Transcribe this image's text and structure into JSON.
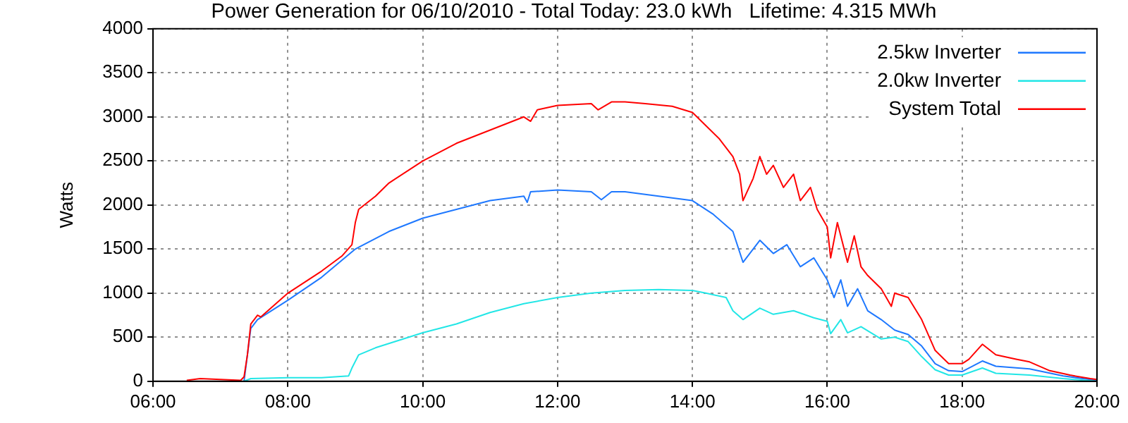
{
  "chart_data": {
    "type": "line",
    "title": "Power Generation for 06/10/2010 - Total Today: 23.0 kWh   Lifetime: 4.315 MWh",
    "ylabel": "Watts",
    "xlim": [
      6,
      20
    ],
    "xticks": [
      {
        "value": 6,
        "label": "06:00"
      },
      {
        "value": 8,
        "label": "08:00"
      },
      {
        "value": 10,
        "label": "10:00"
      },
      {
        "value": 12,
        "label": "12:00"
      },
      {
        "value": 14,
        "label": "14:00"
      },
      {
        "value": 16,
        "label": "16:00"
      },
      {
        "value": 18,
        "label": "18:00"
      },
      {
        "value": 20,
        "label": "20:00"
      }
    ],
    "ylim": [
      0,
      4000
    ],
    "yticks": [
      0,
      500,
      1000,
      1500,
      2000,
      2500,
      3000,
      3500,
      4000
    ],
    "grid": true,
    "legend": "top right",
    "marker": "none",
    "line_style": "solid",
    "series": [
      {
        "name": "2.5kw Inverter",
        "color": "#1e78ff",
        "x": [
          7.35,
          7.45,
          7.55,
          8,
          8.5,
          9,
          9.5,
          10,
          10.5,
          11,
          11.5,
          11.55,
          11.6,
          12,
          12.5,
          12.65,
          12.8,
          13,
          13.5,
          14,
          14.3,
          14.6,
          14.75,
          15,
          15.2,
          15.4,
          15.6,
          15.8,
          16,
          16.1,
          16.2,
          16.3,
          16.45,
          16.6,
          16.8,
          17,
          17.2,
          17.4,
          17.6,
          17.8,
          18,
          18.3,
          18.5,
          19,
          19.5,
          20
        ],
        "values": [
          0,
          600,
          700,
          920,
          1180,
          1500,
          1700,
          1850,
          1950,
          2050,
          2100,
          2030,
          2150,
          2170,
          2150,
          2060,
          2150,
          2150,
          2100,
          2050,
          1900,
          1700,
          1350,
          1600,
          1450,
          1550,
          1300,
          1400,
          1150,
          950,
          1150,
          850,
          1050,
          800,
          700,
          580,
          530,
          400,
          200,
          120,
          110,
          230,
          170,
          140,
          60,
          10
        ]
      },
      {
        "name": "2.0kw Inverter",
        "color": "#22e6e6",
        "x": [
          7.35,
          7.45,
          8,
          8.5,
          8.9,
          8.95,
          9.05,
          9.3,
          10,
          10.5,
          11,
          11.5,
          12,
          12.5,
          13,
          13.5,
          14,
          14.2,
          14.5,
          14.6,
          14.75,
          15,
          15.2,
          15.5,
          15.8,
          16,
          16.05,
          16.2,
          16.3,
          16.5,
          16.8,
          17,
          17.2,
          17.4,
          17.6,
          17.8,
          18,
          18.3,
          18.5,
          19,
          19.5,
          20
        ],
        "values": [
          0,
          30,
          40,
          40,
          60,
          150,
          300,
          380,
          550,
          650,
          780,
          880,
          950,
          1000,
          1030,
          1040,
          1030,
          1000,
          950,
          800,
          700,
          830,
          760,
          800,
          720,
          680,
          540,
          700,
          550,
          620,
          480,
          500,
          450,
          280,
          130,
          70,
          70,
          150,
          90,
          70,
          30,
          0
        ]
      },
      {
        "name": "System Total",
        "color": "#ff0000",
        "x": [
          6.5,
          6.7,
          7,
          7.3,
          7.35,
          7.4,
          7.45,
          7.55,
          7.6,
          8,
          8.5,
          8.8,
          8.95,
          9,
          9.05,
          9.3,
          9.5,
          10,
          10.5,
          11,
          11.5,
          11.6,
          11.7,
          12,
          12.5,
          12.6,
          12.8,
          13,
          13.3,
          13.7,
          14,
          14.2,
          14.4,
          14.6,
          14.7,
          14.75,
          14.9,
          15,
          15.1,
          15.2,
          15.35,
          15.5,
          15.6,
          15.75,
          15.85,
          16,
          16.05,
          16.15,
          16.3,
          16.4,
          16.5,
          16.6,
          16.8,
          16.95,
          17,
          17.2,
          17.4,
          17.6,
          17.8,
          18,
          18.1,
          18.3,
          18.5,
          18.8,
          19,
          19.3,
          19.6,
          19.9,
          20
        ],
        "values": [
          10,
          30,
          20,
          10,
          50,
          300,
          650,
          750,
          730,
          1000,
          1250,
          1420,
          1550,
          1800,
          1950,
          2100,
          2250,
          2500,
          2700,
          2850,
          3000,
          2950,
          3080,
          3130,
          3150,
          3080,
          3170,
          3170,
          3150,
          3120,
          3050,
          2900,
          2750,
          2550,
          2350,
          2050,
          2300,
          2550,
          2350,
          2450,
          2200,
          2350,
          2050,
          2200,
          1950,
          1750,
          1400,
          1800,
          1350,
          1650,
          1300,
          1200,
          1050,
          850,
          1000,
          950,
          700,
          350,
          200,
          200,
          250,
          420,
          300,
          250,
          220,
          120,
          70,
          30,
          20
        ]
      }
    ]
  }
}
